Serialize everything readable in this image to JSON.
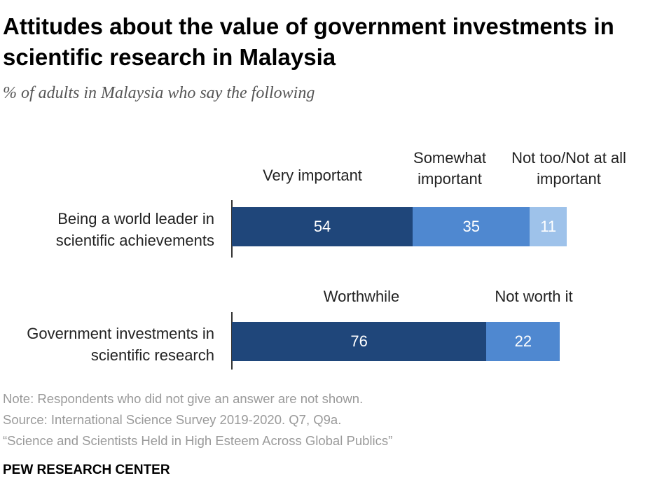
{
  "header": {
    "title": "Attitudes about the value of government investments in scientific research in Malaysia",
    "subtitle": "% of adults in Malaysia who say the following"
  },
  "colors": {
    "very_important": "#1f467a",
    "somewhat_important": "#4f88d0",
    "not_too_important": "#9ec2ea",
    "worthwhile": "#1f467a",
    "not_worth_it": "#4f88d0"
  },
  "chart_data": [
    {
      "type": "bar",
      "orientation": "horizontal-stacked",
      "categories": [
        "Being a world leader in scientific achievements"
      ],
      "series": [
        {
          "name": "Very important",
          "values": [
            54
          ]
        },
        {
          "name": "Somewhat important",
          "values": [
            35
          ]
        },
        {
          "name": "Not too/Not at all important",
          "values": [
            11
          ]
        }
      ],
      "xlim": [
        0,
        100
      ]
    },
    {
      "type": "bar",
      "orientation": "horizontal-stacked",
      "categories": [
        "Government investments in scientific research"
      ],
      "series": [
        {
          "name": "Worthwhile",
          "values": [
            76
          ]
        },
        {
          "name": "Not worth it",
          "values": [
            22
          ]
        }
      ],
      "xlim": [
        0,
        100
      ]
    }
  ],
  "footer": {
    "note": "Note: Respondents who did not give an answer are not shown.",
    "source": "Source: International Science Survey 2019-2020. Q7, Q9a.",
    "report": "“Science and Scientists Held in High Esteem Across Global Publics”",
    "brand": "PEW RESEARCH CENTER"
  }
}
